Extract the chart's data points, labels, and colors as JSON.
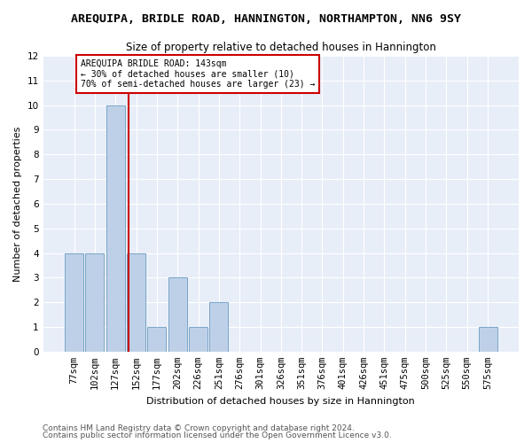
{
  "title": "AREQUIPA, BRIDLE ROAD, HANNINGTON, NORTHAMPTON, NN6 9SY",
  "subtitle": "Size of property relative to detached houses in Hannington",
  "xlabel": "Distribution of detached houses by size in Hannington",
  "ylabel": "Number of detached properties",
  "footer_line1": "Contains HM Land Registry data © Crown copyright and database right 2024.",
  "footer_line2": "Contains public sector information licensed under the Open Government Licence v3.0.",
  "bin_labels": [
    "77sqm",
    "102sqm",
    "127sqm",
    "152sqm",
    "177sqm",
    "202sqm",
    "226sqm",
    "251sqm",
    "276sqm",
    "301sqm",
    "326sqm",
    "351sqm",
    "376sqm",
    "401sqm",
    "426sqm",
    "451sqm",
    "475sqm",
    "500sqm",
    "525sqm",
    "550sqm",
    "575sqm"
  ],
  "counts": [
    4,
    4,
    10,
    4,
    1,
    3,
    1,
    2,
    0,
    0,
    0,
    0,
    0,
    0,
    0,
    0,
    0,
    0,
    0,
    0,
    1
  ],
  "bar_color": "#bed0e8",
  "bar_edge_color": "#6a9cc0",
  "vline_color": "#cc0000",
  "vline_position": 2.64,
  "annotation_text": "AREQUIPA BRIDLE ROAD: 143sqm\n← 30% of detached houses are smaller (10)\n70% of semi-detached houses are larger (23) →",
  "annotation_box_facecolor": "white",
  "annotation_box_edgecolor": "#cc0000",
  "ylim_max": 12,
  "background_color": "#e8eef8",
  "grid_color": "white",
  "title_fontsize": 9.5,
  "subtitle_fontsize": 8.5,
  "axis_label_fontsize": 8,
  "tick_fontsize": 7.5,
  "annotation_fontsize": 7,
  "footer_fontsize": 6.5
}
